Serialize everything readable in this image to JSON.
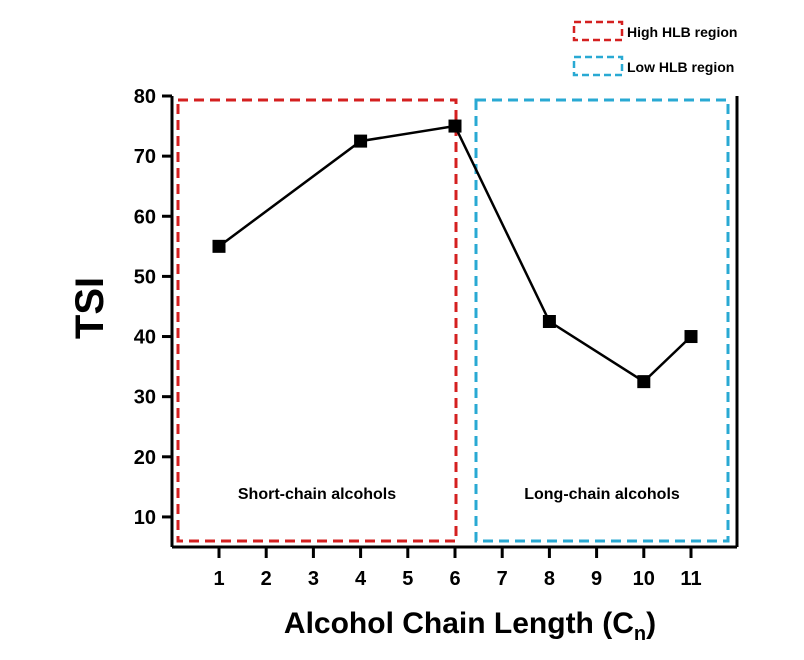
{
  "chart_data": {
    "type": "line",
    "title": "",
    "xlabel": "Alcohol Chain Length (C",
    "xlabel_subscript": "n",
    "xlabel_close": ")",
    "ylabel": "TSI",
    "ylim": [
      5,
      80
    ],
    "yticks": [
      10,
      20,
      30,
      40,
      50,
      60,
      70,
      80
    ],
    "x_categories": [
      "1",
      "2",
      "3",
      "4",
      "5",
      "6",
      "7",
      "8",
      "9",
      "10",
      "11"
    ],
    "series": [
      {
        "name": "TSI",
        "color": "#000000",
        "marker": "square",
        "x": [
          "1",
          "4",
          "6",
          "8",
          "10",
          "11"
        ],
        "y": [
          55,
          72.5,
          75,
          42.5,
          32.5,
          40
        ]
      }
    ],
    "regions": [
      {
        "name": "High HLB region",
        "label": "Short-chain alcohols",
        "color": "#d42020",
        "x_start": "1",
        "x_end": "6"
      },
      {
        "name": "Low HLB region",
        "label": "Long-chain alcohols",
        "color": "#29a9d3",
        "x_start": "7",
        "x_end": "11"
      }
    ],
    "legend": {
      "position": "top-right",
      "entries": [
        "High HLB region",
        "Low HLB region"
      ]
    },
    "grid": false
  }
}
